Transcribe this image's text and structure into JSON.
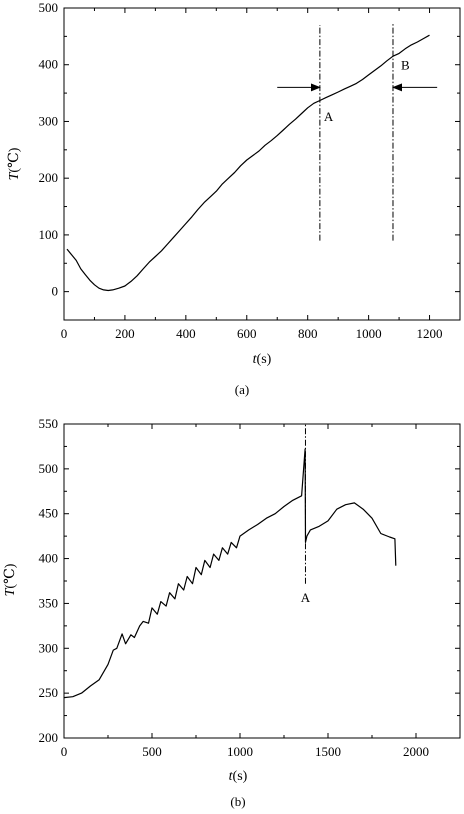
{
  "chart_data": [
    {
      "type": "line",
      "panel_label": "(a)",
      "xlabel": {
        "symbol": "t",
        "unit": "(s)"
      },
      "ylabel": {
        "symbol": "T",
        "unit": "(℃)"
      },
      "xlim": [
        0,
        1300
      ],
      "ylim": [
        -50,
        500
      ],
      "xticks": [
        0,
        200,
        400,
        600,
        800,
        1000,
        1200
      ],
      "yticks": [
        0,
        100,
        200,
        300,
        400,
        500
      ],
      "grid": false,
      "series": [
        {
          "color": "#000000",
          "x": [
            10,
            25,
            40,
            55,
            70,
            85,
            100,
            115,
            130,
            145,
            160,
            180,
            200,
            220,
            240,
            260,
            280,
            300,
            320,
            340,
            360,
            380,
            400,
            420,
            440,
            460,
            480,
            500,
            520,
            540,
            560,
            580,
            600,
            620,
            640,
            660,
            680,
            700,
            720,
            740,
            760,
            780,
            800,
            820,
            840,
            860,
            880,
            900,
            920,
            940,
            960,
            980,
            1000,
            1020,
            1040,
            1060,
            1080,
            1100,
            1120,
            1140,
            1160,
            1180,
            1200
          ],
          "y": [
            75,
            65,
            55,
            40,
            30,
            20,
            12,
            6,
            3,
            2,
            3,
            6,
            10,
            18,
            28,
            40,
            52,
            62,
            72,
            84,
            96,
            108,
            120,
            132,
            145,
            157,
            167,
            177,
            190,
            200,
            210,
            222,
            232,
            240,
            248,
            258,
            266,
            275,
            285,
            295,
            304,
            314,
            324,
            332,
            337,
            342,
            347,
            352,
            357,
            362,
            367,
            374,
            382,
            390,
            398,
            407,
            415,
            420,
            428,
            435,
            440,
            446,
            452
          ]
        }
      ],
      "annotations": [
        {
          "label": "A",
          "x": 840,
          "line_ymin": 90,
          "line_ymax": 470,
          "arrow_from_x": 700,
          "arrow_y": 360,
          "arrow_dir": "right",
          "label_y": 310
        },
        {
          "label": "B",
          "x": 1080,
          "line_ymin": 90,
          "line_ymax": 475,
          "arrow_from_x": 1225,
          "arrow_y": 360,
          "arrow_dir": "left",
          "label_y": 400
        }
      ]
    },
    {
      "type": "line",
      "panel_label": "(b)",
      "xlabel": {
        "symbol": "t",
        "unit": "(s)"
      },
      "ylabel": {
        "symbol": "T",
        "unit": "(℃)"
      },
      "xlim": [
        0,
        2250
      ],
      "ylim": [
        200,
        550
      ],
      "xticks": [
        0,
        500,
        1000,
        1500,
        2000
      ],
      "yticks": [
        200,
        250,
        300,
        350,
        400,
        450,
        500,
        550
      ],
      "grid": false,
      "series": [
        {
          "color": "#000000",
          "x": [
            0,
            50,
            100,
            150,
            200,
            250,
            280,
            300,
            330,
            350,
            380,
            400,
            430,
            450,
            480,
            500,
            530,
            550,
            580,
            600,
            630,
            650,
            680,
            700,
            730,
            750,
            780,
            800,
            830,
            850,
            880,
            900,
            930,
            950,
            980,
            1000,
            1050,
            1100,
            1150,
            1200,
            1250,
            1300,
            1350,
            1370,
            1372,
            1380,
            1400,
            1450,
            1500,
            1550,
            1600,
            1650,
            1700,
            1750,
            1800,
            1850,
            1880,
            1885
          ],
          "y": [
            245,
            246,
            250,
            258,
            265,
            282,
            298,
            300,
            316,
            305,
            315,
            312,
            325,
            330,
            328,
            345,
            338,
            352,
            347,
            362,
            355,
            372,
            365,
            380,
            372,
            390,
            382,
            398,
            390,
            405,
            398,
            412,
            405,
            418,
            412,
            425,
            432,
            438,
            445,
            450,
            458,
            465,
            470,
            522,
            418,
            425,
            432,
            436,
            442,
            455,
            460,
            462,
            455,
            445,
            428,
            424,
            422,
            392
          ]
        }
      ],
      "annotations": [
        {
          "label": "A",
          "x": 1372,
          "line_ymin": 372,
          "line_ymax": 550,
          "label_y": 357
        }
      ]
    }
  ]
}
